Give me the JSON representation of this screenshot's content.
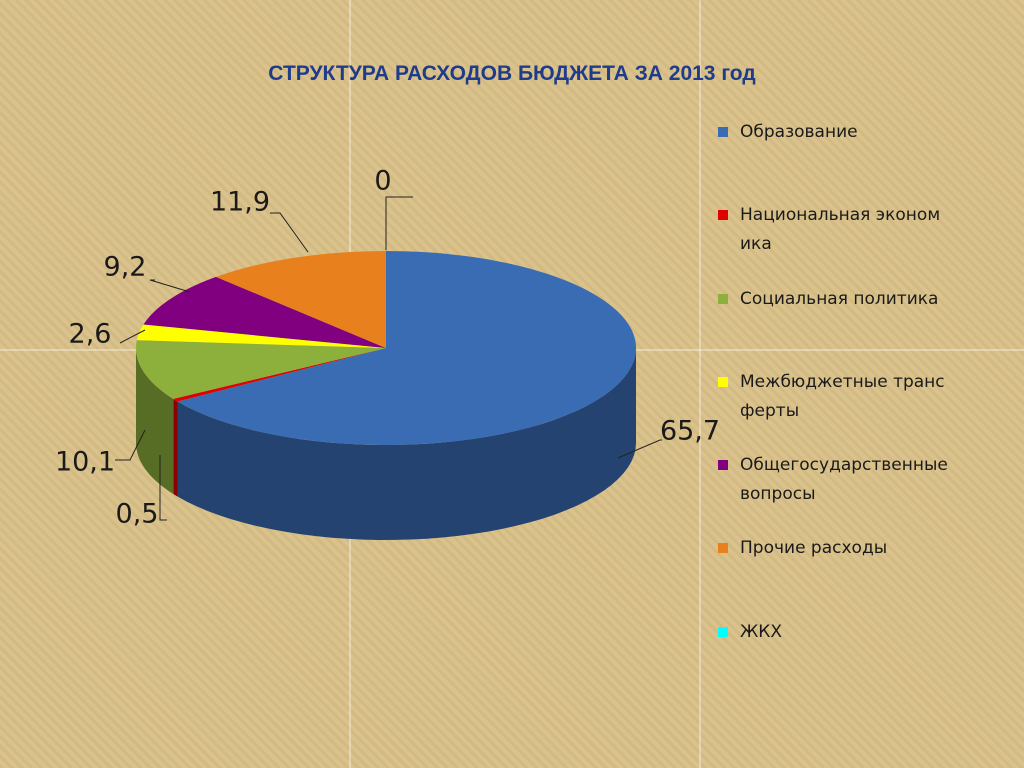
{
  "chart_data": {
    "type": "pie",
    "title": "СТРУКТУРА РАСХОДОВ БЮДЖЕТА ЗА 2013 год",
    "categories": [
      "Образование",
      "Национальная экономика",
      "Социальная политика",
      "Межбюджетные трансферты",
      "Общегосударственные вопросы",
      "Прочие расходы",
      "ЖКХ"
    ],
    "values": [
      65.7,
      0.5,
      10.1,
      2.6,
      9.2,
      11.9,
      0
    ],
    "value_labels": [
      "65,7",
      "0,5",
      "10,1",
      "2,6",
      "9,2",
      "11,9",
      "0"
    ],
    "colors": [
      "#3a6cb4",
      "#e00000",
      "#8db03c",
      "#ffff00",
      "#800080",
      "#e8801e",
      "#00ffff"
    ],
    "legend": "right"
  }
}
